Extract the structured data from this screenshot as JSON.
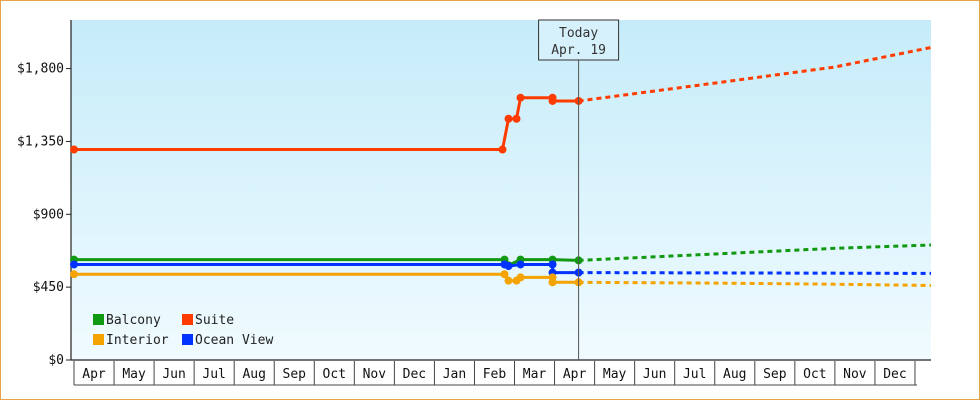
{
  "chart_data": {
    "type": "line",
    "title": "",
    "xlabel": "",
    "ylabel": "",
    "ylim": [
      0,
      2100
    ],
    "yticks": [
      0,
      450,
      900,
      1350,
      1800
    ],
    "ytick_labels": [
      "$0",
      "$450",
      "$900",
      "$1,350",
      "$1,800"
    ],
    "x_months": [
      "Apr",
      "May",
      "Jun",
      "Jul",
      "Aug",
      "Sep",
      "Oct",
      "Nov",
      "Dec",
      "Jan",
      "Feb",
      "Mar",
      "Apr",
      "May",
      "Jun",
      "Jul",
      "Aug",
      "Sep",
      "Oct",
      "Nov",
      "Dec"
    ],
    "x_unit": "months from first Apr",
    "xlim": [
      0,
      21.4
    ],
    "today_marker": {
      "line1": "Today",
      "line2": "Apr. 19",
      "x": 12.6
    },
    "grid": false,
    "legend_position": "bottom-left",
    "series": [
      {
        "name": "Suite",
        "color": "#ff3c00",
        "points": [
          [
            0,
            1300
          ],
          [
            10.7,
            1300
          ],
          [
            10.85,
            1490
          ],
          [
            11.05,
            1490
          ],
          [
            11.15,
            1620
          ],
          [
            11.95,
            1620
          ],
          [
            11.95,
            1600
          ],
          [
            12.6,
            1600
          ]
        ],
        "forecast": [
          [
            12.6,
            1600
          ],
          [
            16,
            1710
          ],
          [
            19,
            1810
          ],
          [
            21.4,
            1930
          ]
        ]
      },
      {
        "name": "Balcony",
        "color": "#119911",
        "points": [
          [
            0,
            620
          ],
          [
            10.75,
            620
          ],
          [
            10.85,
            585
          ],
          [
            11.15,
            620
          ],
          [
            11.95,
            620
          ],
          [
            12.6,
            615
          ]
        ],
        "forecast": [
          [
            12.6,
            615
          ],
          [
            16,
            655
          ],
          [
            19,
            690
          ],
          [
            21.4,
            710
          ]
        ]
      },
      {
        "name": "Ocean View",
        "color": "#0033ff",
        "points": [
          [
            0,
            590
          ],
          [
            10.75,
            590
          ],
          [
            10.85,
            580
          ],
          [
            11.15,
            590
          ],
          [
            11.95,
            590
          ],
          [
            11.95,
            540
          ],
          [
            12.6,
            540
          ]
        ],
        "forecast": [
          [
            12.6,
            540
          ],
          [
            21.4,
            535
          ]
        ]
      },
      {
        "name": "Interior",
        "color": "#f4a300",
        "points": [
          [
            0,
            530
          ],
          [
            10.75,
            530
          ],
          [
            10.85,
            490
          ],
          [
            11.05,
            490
          ],
          [
            11.15,
            510
          ],
          [
            11.95,
            510
          ],
          [
            11.95,
            480
          ],
          [
            12.6,
            480
          ]
        ],
        "forecast": [
          [
            12.6,
            480
          ],
          [
            16,
            475
          ],
          [
            19,
            468
          ],
          [
            21.4,
            460
          ]
        ]
      }
    ],
    "legend": [
      {
        "name": "Balcony",
        "color": "#119911"
      },
      {
        "name": "Suite",
        "color": "#ff3c00"
      },
      {
        "name": "Interior",
        "color": "#f4a300"
      },
      {
        "name": "Ocean View",
        "color": "#0033ff"
      }
    ]
  }
}
